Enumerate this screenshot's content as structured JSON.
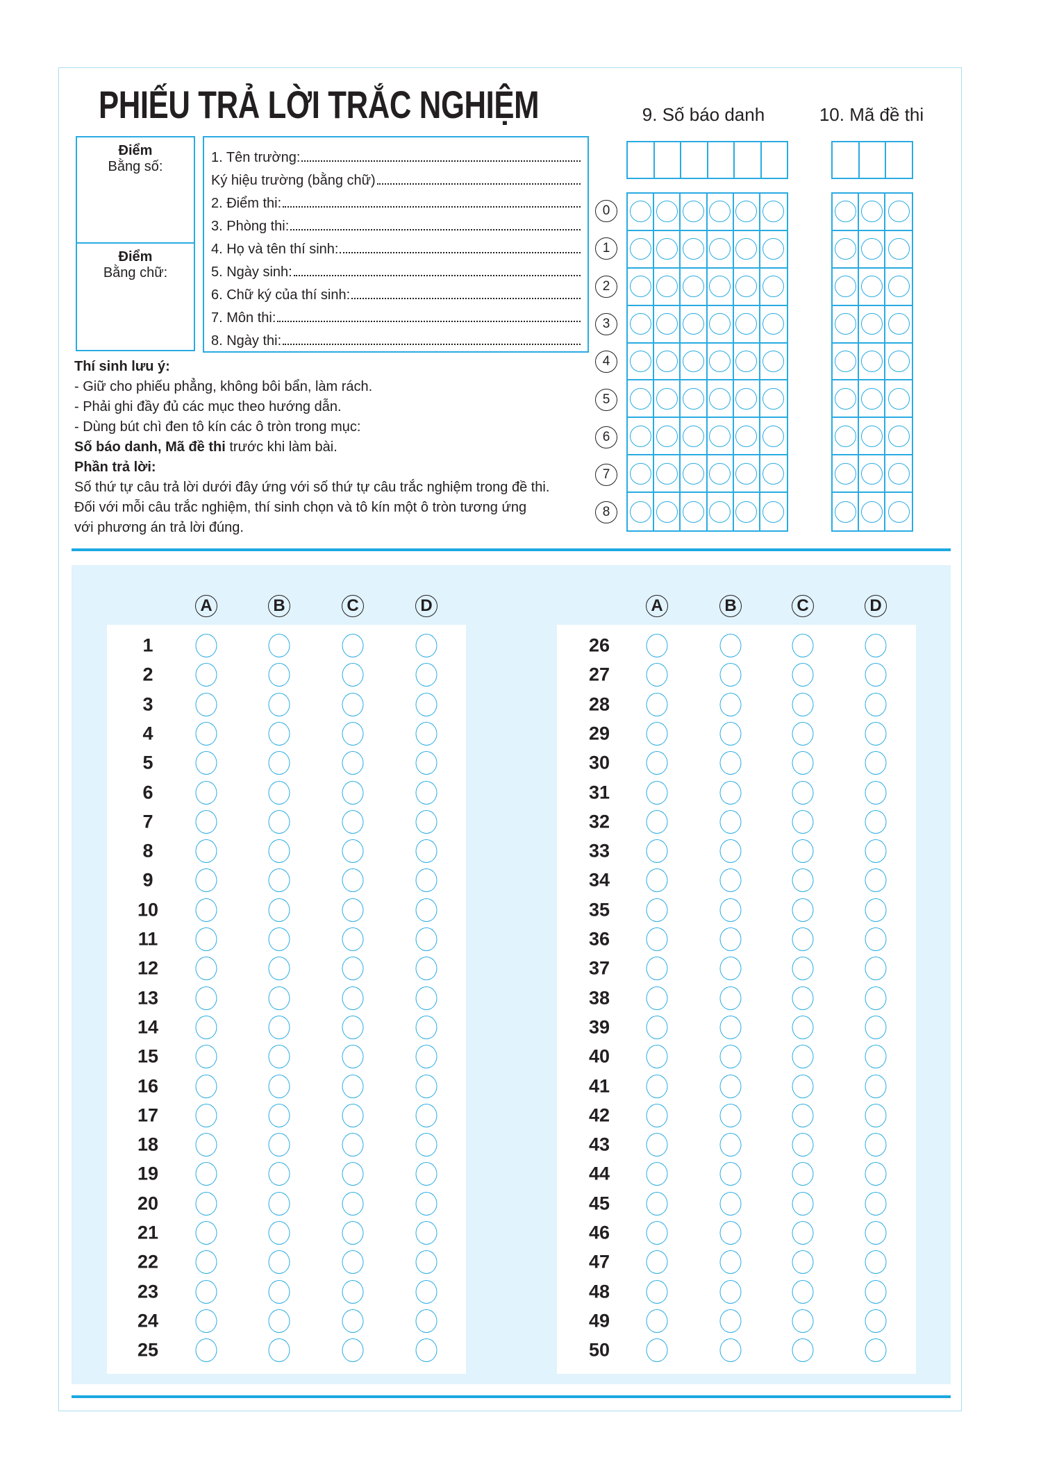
{
  "title": "PHIẾU TRẢ LỜI TRẮC NGHIỆM",
  "score_box": {
    "top": {
      "heading": "Điểm",
      "label": "Bằng số:"
    },
    "bottom": {
      "heading": "Điểm",
      "label": "Bằng chữ:"
    }
  },
  "info_fields": [
    "1. Tên trường:",
    "Ký hiệu trường (bằng chữ)",
    "2.  Điểm thi:",
    "3. Phòng thi: ",
    "4. Họ và tên thí sinh:",
    "5. Ngày sinh:",
    "6. Chữ ký của thí sinh:",
    "7. Môn thi:",
    "8. Ngày thi:"
  ],
  "notes": {
    "heading": "Thí sinh lưu ý:",
    "items": [
      "- Giữ cho phiếu phẳng, không bôi bẩn, làm rách.",
      "- Phải ghi đầy đủ các mục theo hướng dẫn.",
      "- Dùng bút chì đen tô kín các ô tròn trong mục:"
    ],
    "bold_part": "Số báo danh, Mã đề thi",
    "rest_part": " trước khi làm bài.",
    "answer_heading": "Phần trả lời:",
    "answer_text": [
      "Số thứ tự câu trả lời dưới đây ứng với số thứ tự câu trắc nghiệm trong đề thi.",
      "Đối với mỗi câu trắc nghiệm, thí sinh chọn và tô kín một ô tròn tương ứng",
      "với phương án trả lời đúng."
    ]
  },
  "candidate_number": {
    "label": "9. Số báo danh",
    "columns": 6
  },
  "exam_code": {
    "label": "10. Mã đề thi",
    "columns": 3
  },
  "digits": [
    "0",
    "1",
    "2",
    "3",
    "4",
    "5",
    "6",
    "7",
    "8"
  ],
  "options": [
    "A",
    "B",
    "C",
    "D"
  ],
  "questions_left": [
    "1",
    "2",
    "3",
    "4",
    "5",
    "6",
    "7",
    "8",
    "9",
    "10",
    "11",
    "12",
    "13",
    "14",
    "15",
    "16",
    "17",
    "18",
    "19",
    "20",
    "21",
    "22",
    "23",
    "24",
    "25"
  ],
  "questions_right": [
    "26",
    "27",
    "28",
    "29",
    "30",
    "31",
    "32",
    "33",
    "34",
    "35",
    "36",
    "37",
    "38",
    "39",
    "40",
    "41",
    "42",
    "43",
    "44",
    "45",
    "46",
    "47",
    "48",
    "49",
    "50"
  ],
  "colors": {
    "accent": "#29abe2",
    "answer_background": "#e1f3fc"
  }
}
